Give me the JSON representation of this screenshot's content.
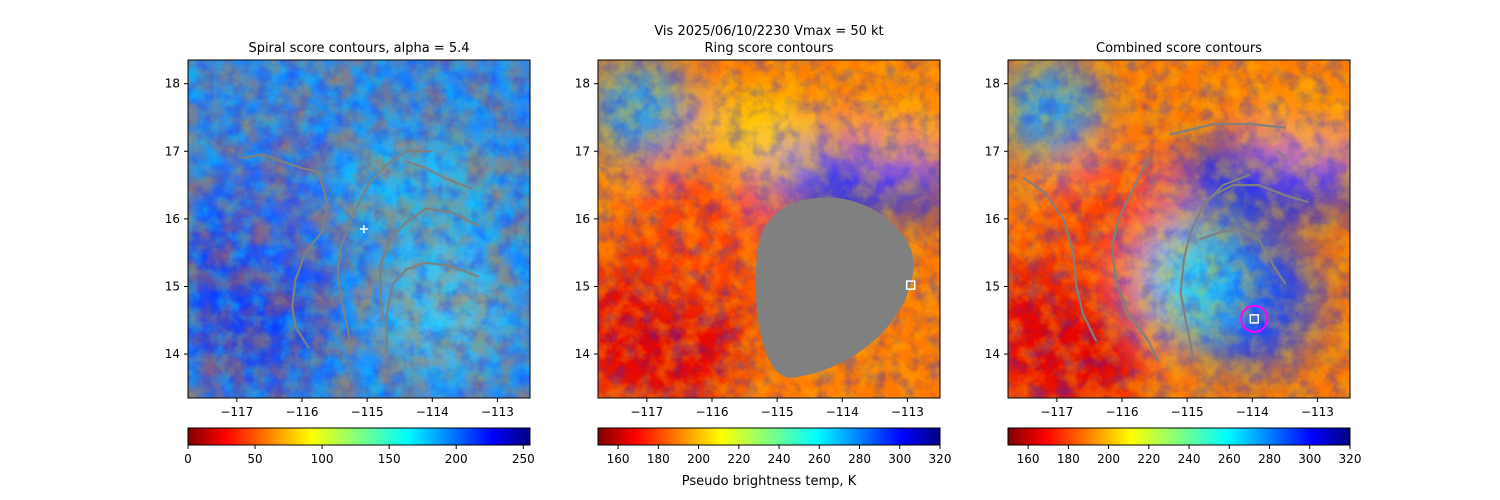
{
  "figure": {
    "suptitle_line1": "Vis  2025/06/10/2230    Vmax = 50 kt",
    "colorbar_label": "Pseudo brightness temp, K"
  },
  "chart_data": [
    {
      "type": "heatmap",
      "title": "Spiral score contours, alpha =  5.4",
      "xlim": [
        -117.75,
        -112.5
      ],
      "ylim": [
        13.35,
        18.35
      ],
      "xticks": [
        -117,
        -116,
        -115,
        -114,
        -113
      ],
      "yticks": [
        14,
        15,
        16,
        17,
        18
      ],
      "colormap": "jet",
      "colorbar": {
        "range": [
          0,
          255
        ],
        "ticks": [
          0,
          50,
          100,
          150,
          200,
          250
        ],
        "reversed": true
      },
      "contour_color": "#808080",
      "contours": [
        [
          [
            -116.9,
            16.9
          ],
          [
            -116.6,
            16.95
          ],
          [
            -116.3,
            16.85
          ],
          [
            -116.0,
            16.75
          ],
          [
            -115.75,
            16.7
          ],
          [
            -115.6,
            16.2
          ],
          [
            -115.7,
            15.8
          ],
          [
            -115.95,
            15.5
          ],
          [
            -116.1,
            15.1
          ],
          [
            -116.15,
            14.7
          ],
          [
            -116.1,
            14.4
          ],
          [
            -115.9,
            14.1
          ]
        ],
        [
          [
            -114.0,
            17.0
          ],
          [
            -114.4,
            17.0
          ],
          [
            -114.7,
            16.8
          ],
          [
            -114.95,
            16.55
          ],
          [
            -115.2,
            16.1
          ],
          [
            -115.4,
            15.6
          ],
          [
            -115.45,
            15.2
          ],
          [
            -115.4,
            14.8
          ],
          [
            -115.3,
            14.4
          ],
          [
            -115.25,
            14.0
          ]
        ],
        [
          [
            -114.4,
            16.85
          ],
          [
            -114.1,
            16.75
          ],
          [
            -113.8,
            16.6
          ],
          [
            -113.4,
            16.45
          ]
        ],
        [
          [
            -113.3,
            15.9
          ],
          [
            -113.7,
            16.1
          ],
          [
            -114.1,
            16.15
          ],
          [
            -114.4,
            15.95
          ],
          [
            -114.65,
            15.7
          ],
          [
            -114.8,
            15.3
          ],
          [
            -114.8,
            14.9
          ],
          [
            -114.75,
            14.5
          ]
        ],
        [
          [
            -113.3,
            15.15
          ],
          [
            -113.7,
            15.3
          ],
          [
            -114.1,
            15.35
          ],
          [
            -114.4,
            15.25
          ],
          [
            -114.6,
            15.05
          ],
          [
            -114.7,
            14.6
          ],
          [
            -114.7,
            14.0
          ]
        ]
      ],
      "markers": [
        {
          "symbol": "plus",
          "x": -115.05,
          "y": 15.85,
          "color": "#ffffff"
        }
      ]
    },
    {
      "type": "heatmap",
      "title": "Ring score contours",
      "xlim": [
        -117.75,
        -112.5
      ],
      "ylim": [
        13.35,
        18.35
      ],
      "xticks": [
        -117,
        -116,
        -115,
        -114,
        -113
      ],
      "yticks": [
        14,
        15,
        16,
        17,
        18
      ],
      "colormap": "jet",
      "colorbar": {
        "range": [
          150,
          320
        ],
        "ticks": [
          160,
          180,
          200,
          220,
          240,
          260,
          280,
          300,
          320
        ],
        "reversed": true
      },
      "masked_region_color": "#808080",
      "markers": [
        {
          "symbol": "square",
          "x": -112.95,
          "y": 15.02,
          "color": "#ffffff"
        }
      ]
    },
    {
      "type": "heatmap",
      "title": "Combined score contours",
      "xlim": [
        -117.75,
        -112.5
      ],
      "ylim": [
        13.35,
        18.35
      ],
      "xticks": [
        -117,
        -116,
        -115,
        -114,
        -113
      ],
      "yticks": [
        14,
        15,
        16,
        17,
        18
      ],
      "colormap": "jet",
      "colorbar": {
        "range": [
          150,
          320
        ],
        "ticks": [
          160,
          180,
          200,
          220,
          240,
          260,
          280,
          300,
          320
        ],
        "reversed": true
      },
      "contour_color": "#808080",
      "contours": [
        [
          [
            -117.5,
            16.6
          ],
          [
            -117.2,
            16.4
          ],
          [
            -116.9,
            16.0
          ],
          [
            -116.75,
            15.5
          ],
          [
            -116.7,
            15.0
          ],
          [
            -116.6,
            14.6
          ],
          [
            -116.4,
            14.2
          ]
        ],
        [
          [
            -115.6,
            16.9
          ],
          [
            -115.85,
            16.4
          ],
          [
            -116.05,
            16.0
          ],
          [
            -116.15,
            15.6
          ],
          [
            -116.1,
            15.1
          ],
          [
            -115.9,
            14.6
          ],
          [
            -115.6,
            14.2
          ],
          [
            -115.45,
            13.9
          ]
        ],
        [
          [
            -114.05,
            16.65
          ],
          [
            -114.45,
            16.5
          ],
          [
            -114.75,
            16.2
          ],
          [
            -114.95,
            15.8
          ],
          [
            -115.05,
            15.4
          ],
          [
            -115.1,
            14.9
          ],
          [
            -115.0,
            14.4
          ],
          [
            -114.9,
            13.9
          ]
        ],
        [
          [
            -115.25,
            17.25
          ],
          [
            -114.6,
            17.4
          ],
          [
            -114.0,
            17.4
          ],
          [
            -113.5,
            17.35
          ]
        ],
        [
          [
            -113.15,
            16.25
          ],
          [
            -113.5,
            16.35
          ],
          [
            -113.9,
            16.5
          ],
          [
            -114.3,
            16.5
          ],
          [
            -114.6,
            16.35
          ]
        ],
        [
          [
            -114.8,
            15.7
          ],
          [
            -114.5,
            15.8
          ],
          [
            -114.2,
            15.85
          ],
          [
            -113.9,
            15.7
          ],
          [
            -113.7,
            15.35
          ],
          [
            -113.5,
            15.05
          ]
        ],
        [
          [
            -113.6,
            17.0
          ],
          [
            -113.5,
            16.9
          ]
        ]
      ],
      "circle": {
        "x": -113.97,
        "y": 14.52,
        "radius_deg": 0.2,
        "color": "#ff00ff"
      },
      "markers": [
        {
          "symbol": "square",
          "x": -113.97,
          "y": 14.52,
          "color": "#ffffff"
        }
      ]
    }
  ]
}
